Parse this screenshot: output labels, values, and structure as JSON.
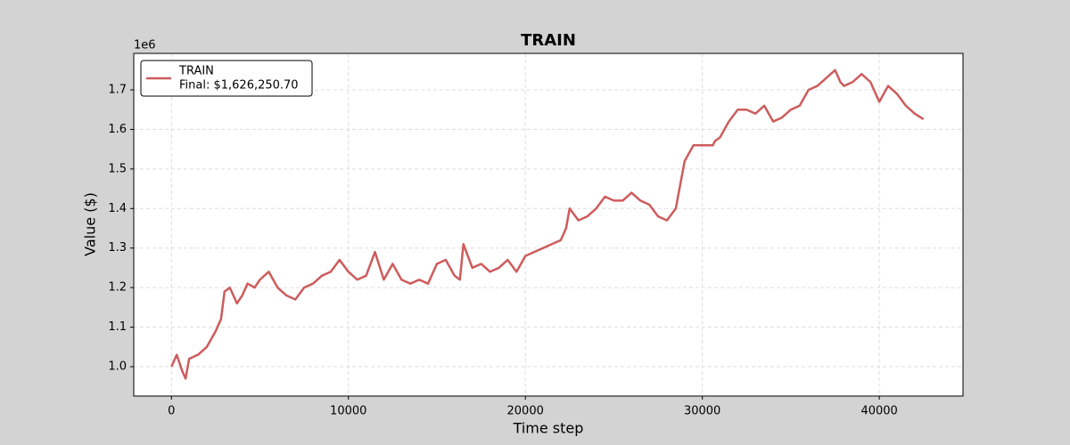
{
  "chart_data": {
    "type": "line",
    "title": "TRAIN",
    "x_label": "Time step",
    "y_label": "Value ($)",
    "y_offset_label": "1e6",
    "legend": "upper left",
    "grid": true,
    "x": [
      0,
      300,
      600,
      800,
      1000,
      1500,
      2000,
      2500,
      2800,
      3000,
      3300,
      3700,
      4000,
      4300,
      4700,
      5000,
      5500,
      6000,
      6500,
      7000,
      7500,
      8000,
      8500,
      9000,
      9500,
      10000,
      10500,
      11000,
      11500,
      12000,
      12500,
      13000,
      13500,
      14000,
      14500,
      15000,
      15500,
      16000,
      16300,
      16500,
      17000,
      17500,
      18000,
      18500,
      19000,
      19500,
      20000,
      20500,
      21000,
      21500,
      22000,
      22300,
      22500,
      23000,
      23500,
      24000,
      24500,
      25000,
      25500,
      26000,
      26500,
      27000,
      27500,
      28000,
      28500,
      29000,
      29500,
      30000,
      30600,
      30700,
      31000,
      31500,
      32000,
      32500,
      33000,
      33500,
      34000,
      34500,
      35000,
      35500,
      36000,
      36500,
      37000,
      37500,
      37800,
      38000,
      38500,
      39000,
      39500,
      40000,
      40500,
      41000,
      41500,
      42000,
      42500
    ],
    "series": [
      {
        "name": "TRAIN",
        "final_label": "Final: $1,626,250.70",
        "color": "#cd5c5c",
        "values": [
          1.0,
          1.03,
          0.99,
          0.97,
          1.02,
          1.03,
          1.05,
          1.09,
          1.12,
          1.19,
          1.2,
          1.16,
          1.18,
          1.21,
          1.2,
          1.22,
          1.24,
          1.2,
          1.18,
          1.17,
          1.2,
          1.21,
          1.23,
          1.24,
          1.27,
          1.24,
          1.22,
          1.23,
          1.29,
          1.22,
          1.26,
          1.22,
          1.21,
          1.22,
          1.21,
          1.26,
          1.27,
          1.23,
          1.22,
          1.31,
          1.25,
          1.26,
          1.24,
          1.25,
          1.27,
          1.24,
          1.28,
          1.29,
          1.3,
          1.31,
          1.32,
          1.35,
          1.4,
          1.37,
          1.38,
          1.4,
          1.43,
          1.42,
          1.42,
          1.44,
          1.42,
          1.41,
          1.38,
          1.37,
          1.4,
          1.52,
          1.56,
          1.56,
          1.56,
          1.57,
          1.58,
          1.62,
          1.65,
          1.65,
          1.64,
          1.66,
          1.62,
          1.63,
          1.65,
          1.66,
          1.7,
          1.71,
          1.73,
          1.75,
          1.72,
          1.71,
          1.72,
          1.74,
          1.72,
          1.67,
          1.71,
          1.69,
          1.66,
          1.64,
          1.626
        ]
      }
    ],
    "xlim": [
      -2130,
      44730
    ],
    "xticks": [
      0,
      10000,
      20000,
      30000,
      40000
    ],
    "ylim": [
      0.9257,
      1.7923
    ],
    "yticks": [
      {
        "value": 1.0,
        "label": "1.0"
      },
      {
        "value": 1.1,
        "label": "1.1"
      },
      {
        "value": 1.2,
        "label": "1.2"
      },
      {
        "value": 1.3,
        "label": "1.3"
      },
      {
        "value": 1.4,
        "label": "1.4"
      },
      {
        "value": 1.5,
        "label": "1.5"
      },
      {
        "value": 1.6,
        "label": "1.6"
      },
      {
        "value": 1.7,
        "label": "1.7"
      }
    ]
  }
}
